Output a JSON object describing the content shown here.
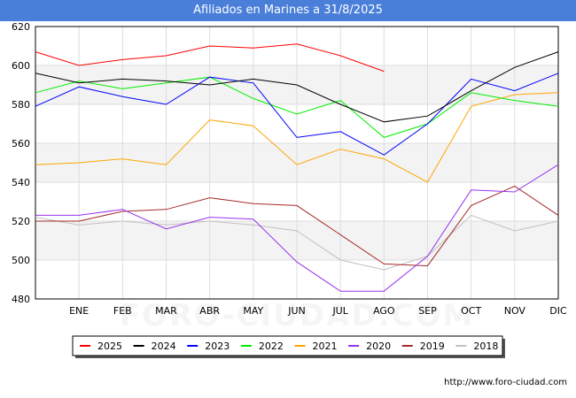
{
  "chart_data": {
    "type": "line",
    "title": "Afiliados en Marines a 31/8/2025",
    "categories": [
      "",
      "ENE",
      "FEB",
      "MAR",
      "ABR",
      "MAY",
      "JUN",
      "JUL",
      "AGO",
      "SEP",
      "OCT",
      "NOV",
      "DIC"
    ],
    "ylim": [
      480,
      620
    ],
    "yticks": [
      480,
      500,
      520,
      540,
      560,
      580,
      600,
      620
    ],
    "grid": true,
    "legend": "bottom",
    "series": [
      {
        "name": "2025",
        "color": "#ff0000",
        "values": [
          607,
          600,
          603,
          605,
          610,
          609,
          611,
          605,
          597,
          null,
          null,
          null,
          null
        ]
      },
      {
        "name": "2024",
        "color": "#000000",
        "values": [
          596,
          591,
          593,
          592,
          590,
          593,
          590,
          580,
          571,
          574,
          587,
          599,
          607
        ]
      },
      {
        "name": "2023",
        "color": "#0000ff",
        "values": [
          579,
          589,
          584,
          580,
          594,
          591,
          563,
          566,
          554,
          570,
          593,
          587,
          596
        ]
      },
      {
        "name": "2022",
        "color": "#00ee00",
        "values": [
          586,
          592,
          588,
          591,
          594,
          583,
          575,
          582,
          563,
          570,
          586,
          582,
          579
        ]
      },
      {
        "name": "2021",
        "color": "#ffa500",
        "values": [
          549,
          550,
          552,
          549,
          572,
          569,
          549,
          557,
          552,
          540,
          579,
          585,
          586
        ]
      },
      {
        "name": "2020",
        "color": "#9933ee",
        "values": [
          523,
          523,
          526,
          516,
          522,
          521,
          499,
          484,
          484,
          502,
          536,
          535,
          549
        ]
      },
      {
        "name": "2019",
        "color": "#a52a2a",
        "values": [
          520,
          520,
          525,
          526,
          532,
          529,
          528,
          513,
          498,
          497,
          528,
          538,
          523
        ]
      },
      {
        "name": "2018",
        "color": "#c0c0c0",
        "values": [
          522,
          518,
          520,
          518,
          520,
          518,
          515,
          500,
          495,
          502,
          523,
          515,
          520
        ]
      }
    ]
  },
  "footer": {
    "url": "http://www.foro-ciudad.com"
  },
  "watermark": "FORO-CIUDAD.COM"
}
